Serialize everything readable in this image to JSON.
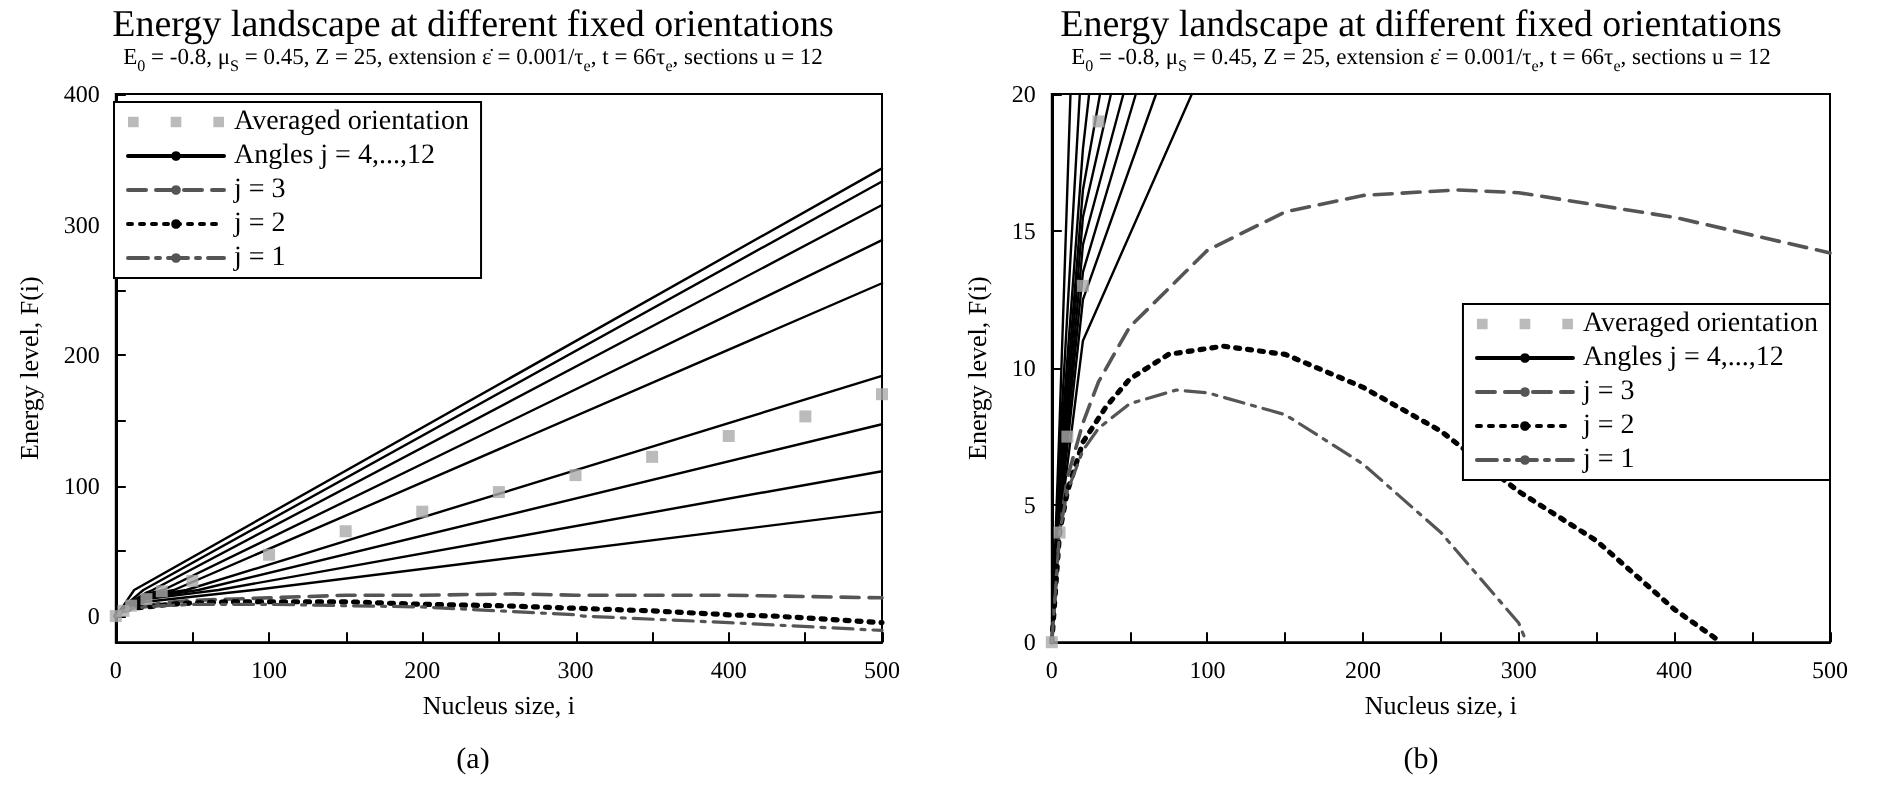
{
  "chart_data": [
    {
      "type": "line",
      "title": "Energy landscape at different fixed orientations",
      "subtitle": "E$_{0}$ = -0.8, μ$_{S}$ = 0.45, Z = 25, extension ε̇  = 0.001/τ$_{e}$, t = 66τ$_{e}$, sections u = 12",
      "xlabel": "Nucleus size, i",
      "ylabel": "Energy level, F(i)",
      "annotations": [
        "(a)"
      ],
      "xlim": [
        0,
        500
      ],
      "ylim": [
        -20,
        400
      ],
      "xticks": [
        0,
        {
          "value": 50,
          "label": null
        },
        100,
        {
          "value": 150,
          "label": null
        },
        200,
        {
          "value": 250,
          "label": null
        },
        300,
        {
          "value": 350,
          "label": null
        },
        400,
        {
          "value": 450,
          "label": null
        },
        500
      ],
      "yticks": [
        0,
        {
          "value": 50,
          "label": null
        },
        100,
        {
          "value": 150,
          "label": null
        },
        200,
        {
          "value": 250,
          "label": null
        },
        300,
        {
          "value": 350,
          "label": null
        },
        400
      ],
      "grid": false,
      "legend": "top left",
      "series": [
        {
          "name": "Averaged orientation",
          "type": "scatter",
          "marker": "square",
          "color": "#aaaaaa",
          "x": [
            0,
            5,
            10,
            20,
            30,
            50,
            100,
            150,
            200,
            250,
            300,
            350,
            400,
            450,
            500
          ],
          "values": [
            0,
            4,
            8,
            13,
            19,
            27,
            47,
            65,
            80,
            95,
            108,
            122,
            138,
            153,
            170
          ]
        },
        {
          "name": "Angles j = 4,...,12",
          "color": "#000000",
          "line_style": "solid",
          "x": [
            0,
            5,
            12,
            500
          ],
          "values": [
            0,
            8,
            20,
            343
          ]
        },
        {
          "color": "#000000",
          "line_style": "solid",
          "x": [
            0,
            5,
            18,
            500
          ],
          "values": [
            0,
            7,
            20,
            333
          ]
        },
        {
          "color": "#000000",
          "line_style": "solid",
          "x": [
            0,
            5,
            20,
            24,
            500
          ],
          "values": [
            0,
            7,
            18,
            20,
            315
          ]
        },
        {
          "color": "#000000",
          "line_style": "solid",
          "x": [
            0,
            5,
            20,
            31,
            500
          ],
          "values": [
            0,
            6,
            17,
            20,
            288
          ]
        },
        {
          "color": "#000000",
          "line_style": "solid",
          "x": [
            0,
            5,
            20,
            38,
            500
          ],
          "values": [
            0,
            6,
            16,
            20,
            255
          ]
        },
        {
          "color": "#000000",
          "line_style": "solid",
          "x": [
            0,
            5,
            20,
            46,
            500
          ],
          "values": [
            0,
            5,
            15,
            20,
            184
          ]
        },
        {
          "color": "#000000",
          "line_style": "solid",
          "x": [
            0,
            5,
            20,
            54,
            500
          ],
          "values": [
            0,
            5,
            14,
            20,
            147
          ]
        },
        {
          "color": "#000000",
          "line_style": "solid",
          "x": [
            0,
            5,
            20,
            67,
            500
          ],
          "values": [
            0,
            5,
            13,
            20,
            111
          ]
        },
        {
          "color": "#000000",
          "line_style": "solid",
          "x": [
            0,
            5,
            20,
            90,
            500
          ],
          "values": [
            0,
            4,
            11,
            20,
            80
          ]
        },
        {
          "name": "j = 3",
          "color": "#555555",
          "line_style": "dashed",
          "x": [
            0,
            5,
            10,
            20,
            30,
            50,
            100,
            150,
            200,
            260,
            300,
            400,
            500
          ],
          "values": [
            0,
            4,
            6,
            8,
            10,
            12,
            14,
            16,
            16,
            17,
            16,
            16,
            14
          ]
        },
        {
          "name": "j = 2",
          "color": "#000000",
          "line_style": "dotted",
          "x": [
            0,
            5,
            10,
            20,
            35,
            50,
            75,
            110,
            150,
            200,
            250,
            300,
            350,
            400,
            430,
            500
          ],
          "values": [
            0,
            4,
            6,
            7,
            9,
            10,
            11,
            11,
            11,
            9,
            8,
            6,
            4,
            1,
            0,
            -5
          ]
        },
        {
          "name": "j = 1",
          "color": "#555555",
          "line_style": "dashdot",
          "x": [
            0,
            5,
            10,
            20,
            30,
            50,
            80,
            100,
            150,
            200,
            250,
            300,
            305,
            400,
            500
          ],
          "values": [
            0,
            4,
            6,
            7,
            8,
            9,
            9,
            9,
            8,
            7,
            4,
            1,
            0,
            -5,
            -11
          ]
        }
      ]
    },
    {
      "type": "line",
      "title": "Energy landscape at different fixed orientations",
      "subtitle": "E$_{0}$ = -0.8, μ$_{S}$ = 0.45, Z = 25, extension ε̇  = 0.001/τ$_{e}$, t = 66τ$_{e}$, sections u = 12",
      "xlabel": "Nucleus size, i",
      "ylabel": "Energy level, F(i)",
      "annotations": [
        "(b)"
      ],
      "xlim": [
        0,
        500
      ],
      "ylim": [
        0,
        20
      ],
      "xticks": [
        0,
        {
          "value": 50,
          "label": null
        },
        100,
        {
          "value": 150,
          "label": null
        },
        200,
        {
          "value": 250,
          "label": null
        },
        300,
        {
          "value": 350,
          "label": null
        },
        400,
        {
          "value": 450,
          "label": null
        },
        500
      ],
      "yticks": [
        0,
        5,
        10,
        15,
        20
      ],
      "grid": false,
      "legend": "right",
      "series": [
        {
          "name": "Averaged orientation",
          "type": "scatter",
          "marker": "square",
          "color": "#aaaaaa",
          "x": [
            0,
            5,
            10,
            20,
            30
          ],
          "values": [
            0,
            4,
            7.5,
            13,
            19
          ]
        },
        {
          "name": "Angles j = 4,...,12",
          "color": "#000000",
          "line_style": "solid",
          "x": [
            0,
            5,
            12
          ],
          "values": [
            0,
            8,
            20
          ]
        },
        {
          "color": "#000000",
          "line_style": "solid",
          "x": [
            0,
            5,
            18
          ],
          "values": [
            0,
            7,
            20
          ]
        },
        {
          "color": "#000000",
          "line_style": "solid",
          "x": [
            0,
            5,
            20,
            24
          ],
          "values": [
            0,
            6.5,
            18,
            20
          ]
        },
        {
          "color": "#000000",
          "line_style": "solid",
          "x": [
            0,
            5,
            20,
            31
          ],
          "values": [
            0,
            6,
            16.5,
            20
          ]
        },
        {
          "color": "#000000",
          "line_style": "solid",
          "x": [
            0,
            5,
            20,
            38
          ],
          "values": [
            0,
            5.5,
            15.5,
            20
          ]
        },
        {
          "color": "#000000",
          "line_style": "solid",
          "x": [
            0,
            5,
            20,
            46
          ],
          "values": [
            0,
            5,
            14.5,
            20
          ]
        },
        {
          "color": "#000000",
          "line_style": "solid",
          "x": [
            0,
            5,
            20,
            54
          ],
          "values": [
            0,
            4.8,
            13.5,
            20
          ]
        },
        {
          "color": "#000000",
          "line_style": "solid",
          "x": [
            0,
            5,
            20,
            67
          ],
          "values": [
            0,
            4.5,
            12.5,
            20
          ]
        },
        {
          "color": "#000000",
          "line_style": "solid",
          "x": [
            0,
            5,
            20,
            90
          ],
          "values": [
            0,
            4.2,
            11,
            20
          ]
        },
        {
          "name": "j = 3",
          "color": "#555555",
          "line_style": "dashed",
          "x": [
            0,
            5,
            10,
            20,
            30,
            50,
            100,
            150,
            200,
            260,
            300,
            400,
            500
          ],
          "values": [
            0,
            4,
            6,
            8,
            9.5,
            11.5,
            14.3,
            15.7,
            16.3,
            16.5,
            16.4,
            15.5,
            14.2
          ]
        },
        {
          "name": "j = 2",
          "color": "#000000",
          "line_style": "dotted",
          "x": [
            0,
            5,
            10,
            20,
            35,
            50,
            75,
            110,
            150,
            200,
            250,
            300,
            350,
            400,
            430
          ],
          "values": [
            0,
            4,
            5.5,
            7.3,
            8.6,
            9.6,
            10.5,
            10.8,
            10.5,
            9.3,
            7.7,
            5.5,
            3.7,
            1.2,
            0
          ]
        },
        {
          "name": "j = 1",
          "color": "#555555",
          "line_style": "dashdot",
          "x": [
            0,
            5,
            10,
            20,
            30,
            50,
            80,
            100,
            150,
            200,
            250,
            300,
            305
          ],
          "values": [
            0,
            4,
            5.5,
            7,
            7.8,
            8.7,
            9.2,
            9.1,
            8.3,
            6.5,
            4,
            0.7,
            0
          ]
        }
      ]
    }
  ]
}
